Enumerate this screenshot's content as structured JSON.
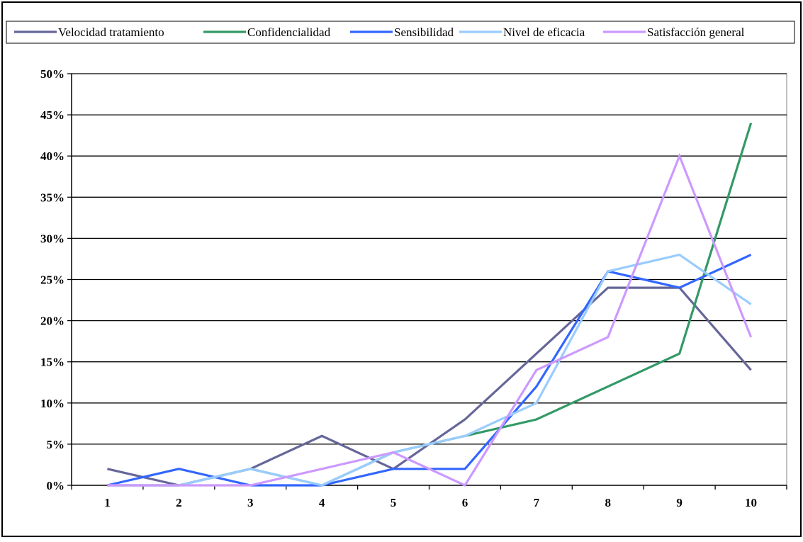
{
  "chart_data": {
    "type": "line",
    "title": "",
    "xlabel": "",
    "ylabel": "",
    "categories": [
      "1",
      "2",
      "3",
      "4",
      "5",
      "6",
      "7",
      "8",
      "9",
      "10"
    ],
    "y_ticks": [
      "0%",
      "5%",
      "10%",
      "15%",
      "20%",
      "25%",
      "30%",
      "35%",
      "40%",
      "45%",
      "50%"
    ],
    "ylim": [
      0,
      50
    ],
    "y_unit": "%",
    "grid": "horizontal",
    "legend_position": "top",
    "series": [
      {
        "name": "Velocidad tratamiento",
        "color": "#666699",
        "values": [
          2,
          0,
          2,
          6,
          2,
          8,
          16,
          24,
          24,
          14
        ]
      },
      {
        "name": "Confidencialidad",
        "color": "#339966",
        "values": [
          0,
          0,
          2,
          0,
          4,
          6,
          8,
          12,
          16,
          44
        ]
      },
      {
        "name": "Sensibilidad",
        "color": "#3366FF",
        "values": [
          0,
          2,
          0,
          0,
          2,
          2,
          12,
          26,
          24,
          28
        ]
      },
      {
        "name": "Nivel de eficacia",
        "color": "#99CCFF",
        "values": [
          0,
          0,
          2,
          0,
          4,
          6,
          10,
          26,
          28,
          22
        ]
      },
      {
        "name": "Satisfacción general",
        "color": "#CC99FF",
        "values": [
          0,
          0,
          0,
          2,
          4,
          0,
          14,
          18,
          40,
          18
        ]
      }
    ]
  }
}
